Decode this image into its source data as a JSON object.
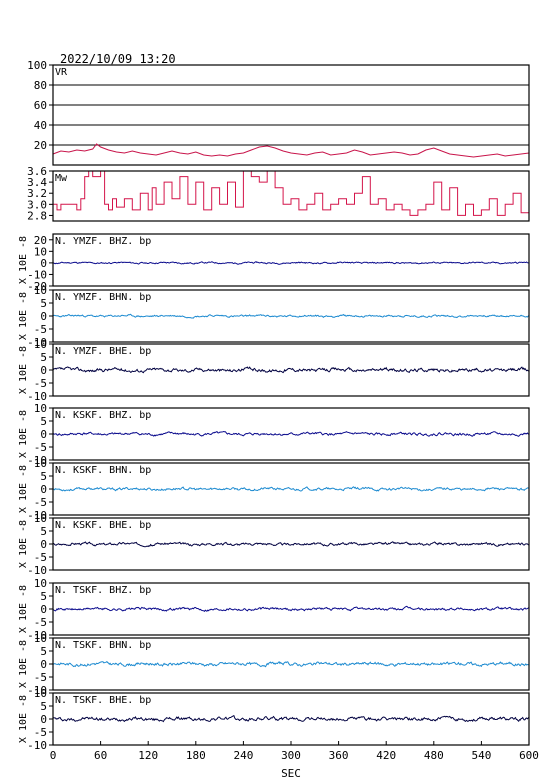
{
  "header": {
    "timestamp": "2022/10/09  13:20"
  },
  "colors": {
    "frame": "#000000",
    "vr": "#c8144a",
    "mw": "#d4144a",
    "bhz": "#0a0a8c",
    "bhn": "#1c8ad0",
    "bhe": "#000040"
  },
  "chart_data": {
    "type": "line",
    "xlabel": "SEC",
    "xlim": [
      0,
      600
    ],
    "xticks": [
      "0",
      "60",
      "120",
      "180",
      "240",
      "300",
      "360",
      "420",
      "480",
      "540",
      "600"
    ],
    "panels": [
      {
        "id": "vr",
        "label": "VR",
        "ylabel": "",
        "ylim": [
          0,
          100
        ],
        "yticks": [
          "20",
          "40",
          "60",
          "80",
          "100"
        ],
        "grid": true,
        "color": "vr",
        "series": {
          "x": [
            0,
            10,
            20,
            30,
            40,
            50,
            55,
            60,
            70,
            80,
            90,
            100,
            110,
            120,
            130,
            140,
            150,
            160,
            170,
            180,
            190,
            200,
            210,
            220,
            230,
            240,
            250,
            260,
            270,
            280,
            290,
            300,
            310,
            320,
            330,
            340,
            350,
            360,
            370,
            380,
            390,
            400,
            410,
            420,
            430,
            440,
            450,
            460,
            470,
            480,
            490,
            500,
            510,
            520,
            530,
            540,
            550,
            560,
            570,
            580,
            590,
            600
          ],
          "y": [
            11,
            14,
            13,
            15,
            14,
            16,
            21,
            18,
            15,
            13,
            12,
            14,
            12,
            11,
            10,
            12,
            14,
            12,
            11,
            13,
            10,
            9,
            10,
            9,
            11,
            12,
            15,
            18,
            19,
            17,
            14,
            12,
            11,
            10,
            12,
            13,
            10,
            11,
            12,
            15,
            13,
            10,
            11,
            12,
            13,
            12,
            10,
            11,
            15,
            17,
            14,
            11,
            10,
            9,
            8,
            9,
            10,
            11,
            9,
            10,
            11,
            12
          ]
        }
      },
      {
        "id": "mw",
        "label": "Mw",
        "ylabel": "",
        "ylim": [
          2.7,
          3.6
        ],
        "yticks": [
          "2.8",
          "3.0",
          "3.2",
          "3.4",
          "3.6"
        ],
        "grid": false,
        "color": "mw",
        "series": {
          "x": [
            0,
            5,
            10,
            20,
            30,
            35,
            40,
            45,
            50,
            60,
            65,
            70,
            75,
            80,
            90,
            100,
            110,
            120,
            125,
            130,
            140,
            150,
            160,
            170,
            180,
            190,
            200,
            210,
            220,
            230,
            240,
            250,
            260,
            270,
            280,
            290,
            300,
            310,
            320,
            330,
            340,
            350,
            360,
            370,
            380,
            390,
            400,
            410,
            420,
            430,
            440,
            450,
            460,
            470,
            480,
            490,
            500,
            510,
            520,
            530,
            540,
            550,
            560,
            570,
            580,
            590,
            600
          ],
          "y": [
            3.0,
            2.9,
            3.0,
            3.0,
            2.9,
            3.1,
            3.5,
            3.6,
            3.5,
            3.6,
            3.0,
            2.9,
            3.1,
            2.95,
            3.1,
            2.9,
            3.2,
            2.9,
            3.3,
            3.0,
            3.4,
            3.1,
            3.5,
            3.0,
            3.4,
            2.9,
            3.3,
            3.0,
            3.4,
            2.95,
            3.6,
            3.5,
            3.4,
            3.6,
            3.3,
            3.0,
            3.1,
            2.9,
            3.0,
            3.2,
            2.9,
            3.0,
            3.1,
            3.0,
            3.2,
            3.5,
            3.0,
            3.1,
            2.9,
            3.0,
            2.9,
            2.8,
            2.9,
            3.0,
            3.4,
            2.9,
            3.3,
            2.8,
            3.0,
            2.8,
            2.9,
            3.1,
            2.8,
            3.0,
            3.2,
            2.85,
            3.1
          ]
        }
      },
      {
        "id": "ymzf-bhz",
        "label": "N. YMZF. BHZ. bp",
        "ylabel": "X 10E -8",
        "ylim": [
          -20,
          25
        ],
        "yticks": [
          "-20",
          "-10",
          "0",
          "10",
          "20"
        ],
        "grid": false,
        "color": "bhz",
        "baseline": 0,
        "amp": 0.6,
        "seed": 11
      },
      {
        "id": "ymzf-bhn",
        "label": "N. YMZF. BHN. bp",
        "ylabel": "X 10E -8",
        "ylim": [
          -10,
          10
        ],
        "yticks": [
          "-10",
          "-5",
          "0",
          "5",
          "10"
        ],
        "grid": false,
        "color": "bhn",
        "baseline": 0,
        "amp": 0.35,
        "seed": 23
      },
      {
        "id": "ymzf-bhe",
        "label": "N. YMZF. BHE. bp",
        "ylabel": "X 10E -8",
        "ylim": [
          -10,
          10
        ],
        "yticks": [
          "-10",
          "-5",
          "0",
          "5",
          "10"
        ],
        "grid": false,
        "color": "bhe",
        "baseline": 0,
        "amp": 0.6,
        "seed": 37
      },
      {
        "id": "kskf-bhz",
        "label": "N. KSKF. BHZ. bp",
        "ylabel": "X 10E -8",
        "ylim": [
          -10,
          10
        ],
        "yticks": [
          "-10",
          "-5",
          "0",
          "5",
          "10"
        ],
        "grid": false,
        "color": "bhz",
        "baseline": 0,
        "amp": 0.45,
        "seed": 41
      },
      {
        "id": "kskf-bhn",
        "label": "N. KSKF. BHN. bp",
        "ylabel": "X 10E -8",
        "ylim": [
          -10,
          10
        ],
        "yticks": [
          "-10",
          "-5",
          "0",
          "5",
          "10"
        ],
        "grid": false,
        "color": "bhn",
        "baseline": 0,
        "amp": 0.45,
        "seed": 53
      },
      {
        "id": "kskf-bhe",
        "label": "N. KSKF. BHE. bp",
        "ylabel": "X 10E -8",
        "ylim": [
          -10,
          10
        ],
        "yticks": [
          "-10",
          "-5",
          "0",
          "5",
          "10"
        ],
        "grid": false,
        "color": "bhe",
        "baseline": 0,
        "amp": 0.45,
        "seed": 67
      },
      {
        "id": "tskf-bhz",
        "label": "N. TSKF. BHZ. bp",
        "ylabel": "X 10E -8",
        "ylim": [
          -10,
          10
        ],
        "yticks": [
          "-10",
          "-5",
          "0",
          "5",
          "10"
        ],
        "grid": false,
        "color": "bhz",
        "baseline": 0,
        "amp": 0.45,
        "seed": 71
      },
      {
        "id": "tskf-bhn",
        "label": "N. TSKF. BHN. bp",
        "ylabel": "X 10E -8",
        "ylim": [
          -10,
          10
        ],
        "yticks": [
          "-10",
          "-5",
          "0",
          "5",
          "10"
        ],
        "grid": false,
        "color": "bhn",
        "baseline": 0,
        "amp": 0.55,
        "seed": 83
      },
      {
        "id": "tskf-bhe",
        "label": "N. TSKF. BHE. bp",
        "ylabel": "X 10E -8",
        "ylim": [
          -10,
          10
        ],
        "yticks": [
          "-10",
          "-5",
          "0",
          "5",
          "10"
        ],
        "grid": false,
        "color": "bhe",
        "baseline": 0,
        "amp": 0.6,
        "seed": 97
      }
    ]
  }
}
